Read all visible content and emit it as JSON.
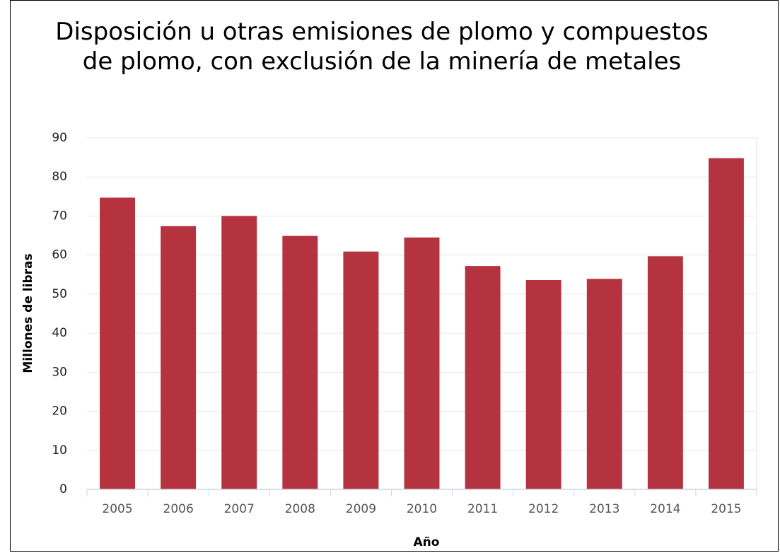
{
  "chart_data": {
    "type": "bar",
    "title": "Disposición u otras emisiones de plomo y compuestos de plomo, con exclusión de la minería de metales",
    "x_label": "Año",
    "y_label": "Millones de libras",
    "categories": [
      "2005",
      "2006",
      "2007",
      "2008",
      "2009",
      "2010",
      "2011",
      "2012",
      "2013",
      "2014",
      "2015"
    ],
    "values": [
      74.7,
      67.4,
      70,
      64.9,
      60.9,
      64.5,
      57.2,
      53.6,
      53.9,
      59.7,
      84.8
    ],
    "color": "#b5323f",
    "ylim": [
      0,
      90
    ],
    "yticks": [
      0,
      10,
      20,
      30,
      40,
      50,
      60,
      70,
      80,
      90
    ],
    "grid": true
  }
}
